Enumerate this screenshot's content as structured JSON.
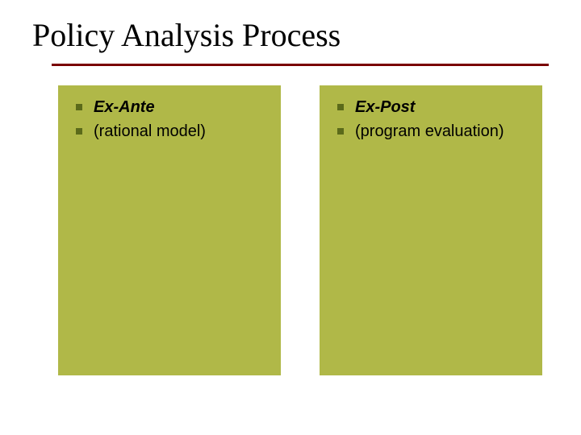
{
  "slide": {
    "title": "Policy Analysis Process",
    "title_fontsize": 40,
    "title_font": "Times New Roman",
    "title_color": "#000000",
    "rule_color": "#7a0000",
    "background_color": "#ffffff",
    "columns": [
      {
        "background_color": "#b0b848",
        "bullet_color": "#5b6a1a",
        "items": [
          {
            "text": "Ex-Ante",
            "bold_italic": true
          },
          {
            "text": "(rational model)",
            "bold_italic": false
          }
        ]
      },
      {
        "background_color": "#b0b848",
        "bullet_color": "#5b6a1a",
        "items": [
          {
            "text": "Ex-Post",
            "bold_italic": true
          },
          {
            "text": "(program evaluation)",
            "bold_italic": false
          }
        ]
      }
    ],
    "body_fontsize": 20,
    "body_font": "Arial"
  }
}
